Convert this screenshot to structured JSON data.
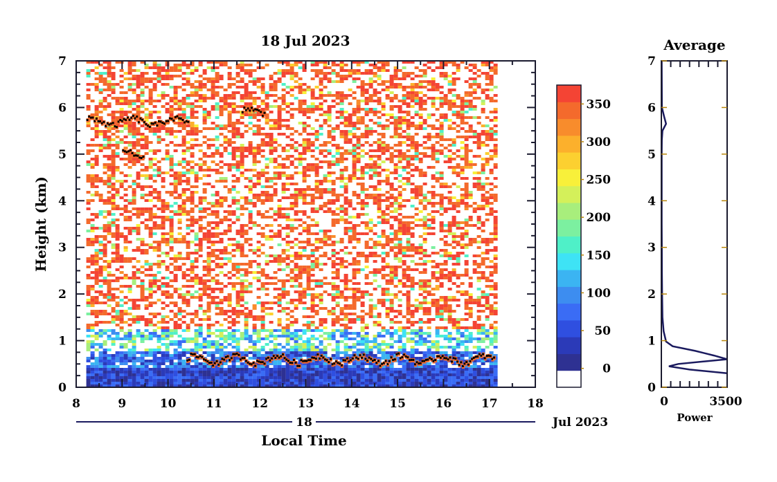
{
  "chart_data": [
    {
      "type": "heatmap",
      "title": "18 Jul 2023",
      "xlabel": "Local Time",
      "ylabel": "Height (km)",
      "date_label": "18",
      "date_suffix": "Jul 2023",
      "xlim": [
        8,
        18
      ],
      "ylim": [
        0,
        7
      ],
      "x_ticks": [
        "8",
        "9",
        "10",
        "11",
        "12",
        "13",
        "14",
        "15",
        "16",
        "17",
        "18"
      ],
      "y_ticks": [
        "0",
        "1",
        "2",
        "3",
        "4",
        "5",
        "6",
        "7"
      ],
      "data_extent_x": [
        8.22,
        17.15
      ],
      "colorbar": {
        "ticks": [
          "0",
          "50",
          "100",
          "150",
          "200",
          "250",
          "300",
          "350"
        ],
        "range": [
          -25,
          375
        ],
        "colors": [
          "#ffffff",
          "#2e3192",
          "#2b3ab8",
          "#2f4fe0",
          "#3a6cf5",
          "#3d8df0",
          "#3bb4f2",
          "#3ee3f5",
          "#4ff0c8",
          "#7cf0a0",
          "#a8ee7c",
          "#d4f05a",
          "#f8f03a",
          "#fcd030",
          "#fcb02c",
          "#f88c2c",
          "#f46a2c",
          "#f44434"
        ]
      },
      "cloud_layers": [
        {
          "name": "",
          "start": 8.22,
          "end": 10.45,
          "height": 5.7
        },
        {
          "name": "",
          "start": 11.6,
          "end": 12.1,
          "height": 5.9
        },
        {
          "name": "",
          "start": 9.0,
          "end": 9.45,
          "height": 5.05
        },
        {
          "name": "",
          "start": 10.4,
          "end": 17.1,
          "height": 0.6
        }
      ]
    },
    {
      "type": "line",
      "title": "Average",
      "xlabel": "Power",
      "ylabel": "",
      "xlim": [
        0,
        3500
      ],
      "ylim": [
        0,
        7
      ],
      "x_ticks": [
        "0",
        "3500"
      ],
      "y_ticks": [
        "0",
        "1",
        "2",
        "3",
        "4",
        "5",
        "6",
        "7"
      ],
      "series": [
        {
          "name": "",
          "x": [
            3500,
            1500,
            400,
            900,
            3500,
            2800,
            1800,
            600,
            250,
            120,
            60,
            40,
            30,
            25,
            20,
            20,
            20,
            25,
            60,
            250,
            150,
            30,
            20
          ],
          "y": [
            0.3,
            0.38,
            0.45,
            0.5,
            0.6,
            0.68,
            0.78,
            0.88,
            0.98,
            1.2,
            1.5,
            2.0,
            2.5,
            3.0,
            3.5,
            4.5,
            5.0,
            5.3,
            5.5,
            5.65,
            5.8,
            6.0,
            7.0
          ]
        }
      ]
    }
  ]
}
